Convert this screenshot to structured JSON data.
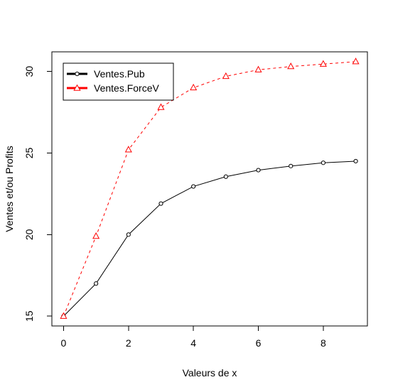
{
  "chart_data": {
    "type": "line",
    "title": "",
    "xlabel": "Valeurs de x",
    "ylabel": "Ventes et/ou Profits",
    "x": [
      0,
      1,
      2,
      3,
      4,
      5,
      6,
      7,
      8,
      9
    ],
    "xlim": [
      -0.36,
      9.36
    ],
    "ylim": [
      14.4,
      31.2
    ],
    "x_ticks": [
      0,
      2,
      4,
      6,
      8
    ],
    "y_ticks": [
      15,
      20,
      25,
      30
    ],
    "x_tick_labels": [
      "0",
      "2",
      "4",
      "6",
      "8"
    ],
    "y_tick_labels": [
      "15",
      "20",
      "25",
      "30"
    ],
    "grid": false,
    "legend_position": "top-left",
    "series": [
      {
        "name": "Ventes.Pub",
        "color": "#000000",
        "line_style": "solid",
        "marker": "circle",
        "values": [
          15.0,
          17.0,
          20.0,
          21.9,
          22.95,
          23.55,
          23.95,
          24.2,
          24.4,
          24.5
        ]
      },
      {
        "name": "Ventes.ForceV",
        "color": "#ff0000",
        "line_style": "dashed",
        "marker": "triangle",
        "values": [
          15.0,
          19.9,
          25.2,
          27.8,
          29.0,
          29.7,
          30.1,
          30.3,
          30.45,
          30.6
        ]
      }
    ]
  }
}
